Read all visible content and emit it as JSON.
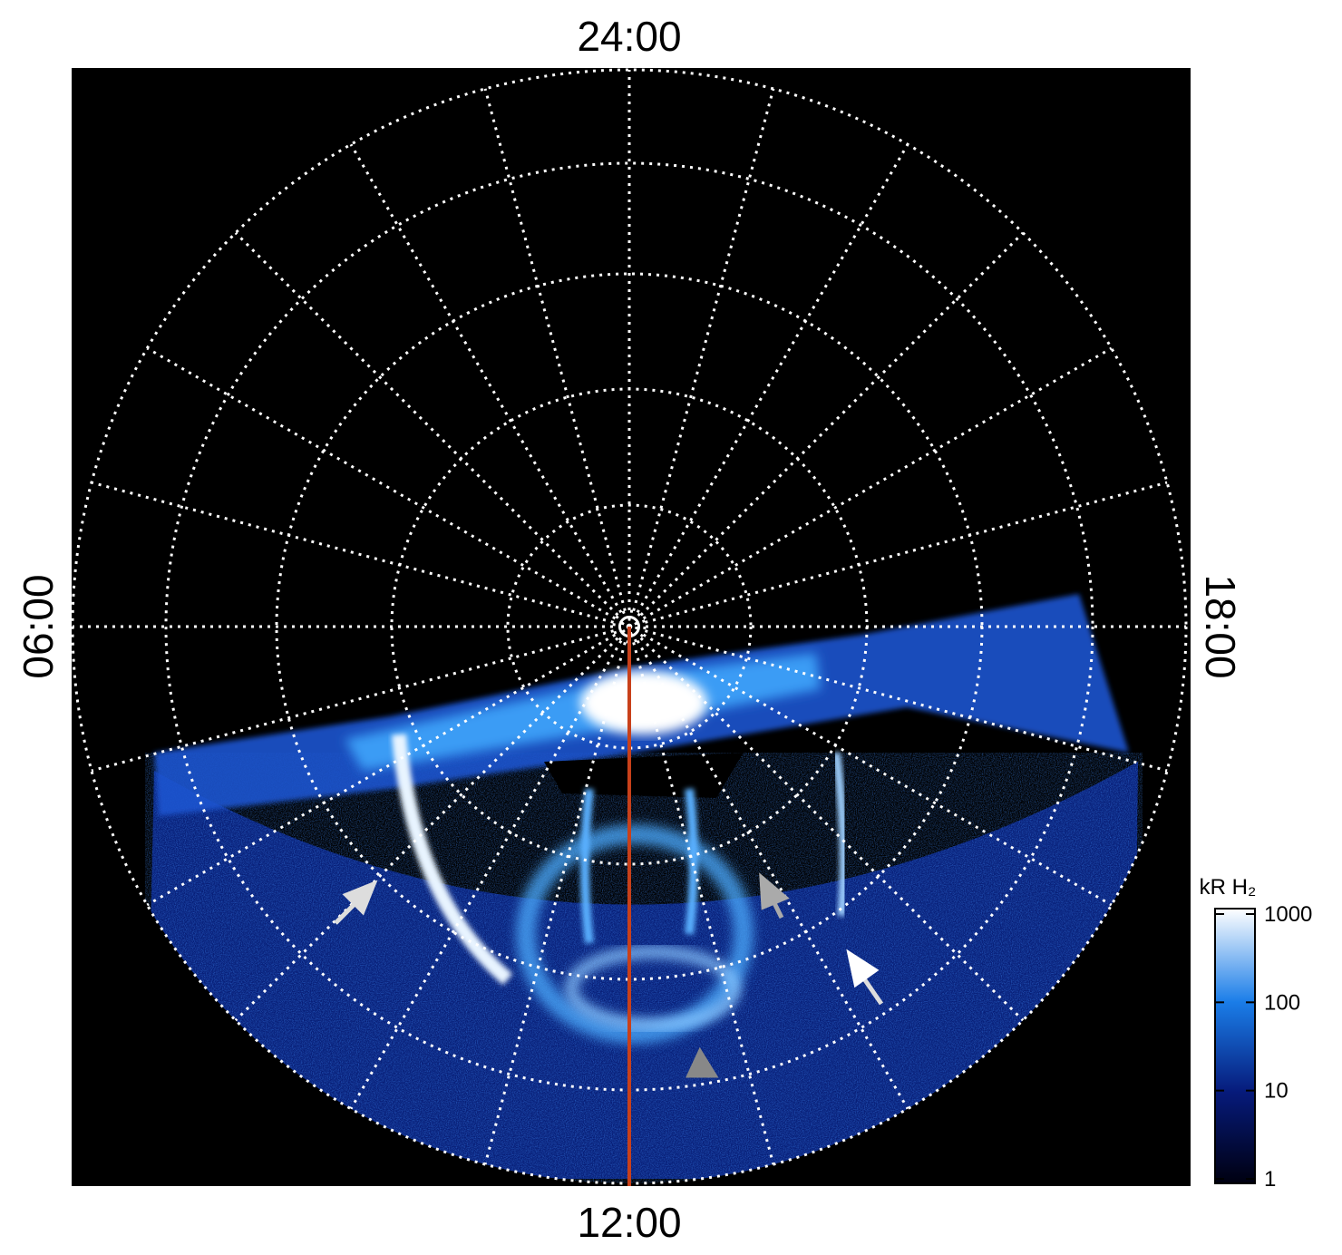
{
  "chart_data": {
    "type": "polar-image",
    "angle_labels": {
      "top": "24:00",
      "left": "06:00",
      "bottom": "12:00",
      "right": "18:00"
    },
    "colorbar": {
      "label": "kR H₂",
      "lim": [
        1,
        1000
      ],
      "ticks": [
        1,
        10,
        100,
        1000
      ],
      "log": true
    }
  }
}
